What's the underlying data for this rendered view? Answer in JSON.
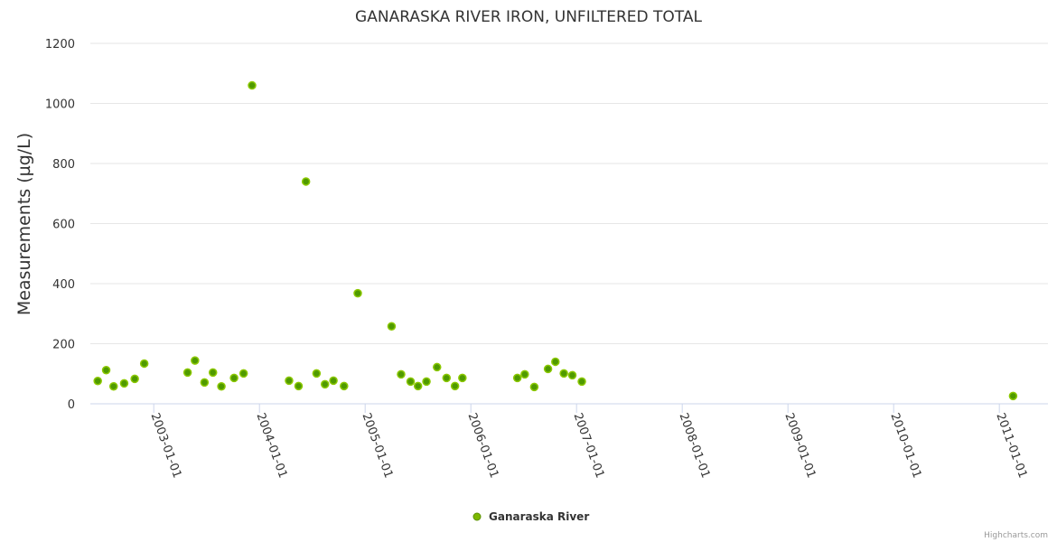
{
  "chart_data": {
    "type": "scatter",
    "title": "GANARASKA RIVER IRON, UNFILTERED TOTAL",
    "xlabel": "",
    "ylabel": "Measurements (µg/L)",
    "ylim": [
      0,
      1200
    ],
    "xlim": [
      2002.4,
      2011.46
    ],
    "y_ticks": [
      0,
      200,
      400,
      600,
      800,
      1000,
      1200
    ],
    "x_ticks": [
      {
        "value": 2003,
        "label": "2003-01-01"
      },
      {
        "value": 2004,
        "label": "2004-01-01"
      },
      {
        "value": 2005,
        "label": "2005-01-01"
      },
      {
        "value": 2006,
        "label": "2006-01-01"
      },
      {
        "value": 2007,
        "label": "2007-01-01"
      },
      {
        "value": 2008,
        "label": "2008-01-01"
      },
      {
        "value": 2009,
        "label": "2009-01-01"
      },
      {
        "value": 2010,
        "label": "2010-01-01"
      },
      {
        "value": 2011,
        "label": "2011-01-01"
      }
    ],
    "grid": true,
    "legend_position": "bottom-center",
    "series": [
      {
        "name": "Ganaraska River",
        "color": "#7cb800",
        "x": [
          2002.47,
          2002.55,
          2002.62,
          2002.72,
          2002.82,
          2002.91,
          2003.32,
          2003.39,
          2003.48,
          2003.56,
          2003.64,
          2003.76,
          2003.85,
          2003.93,
          2004.28,
          2004.37,
          2004.44,
          2004.54,
          2004.62,
          2004.7,
          2004.8,
          2004.93,
          2005.25,
          2005.34,
          2005.43,
          2005.5,
          2005.58,
          2005.68,
          2005.77,
          2005.85,
          2005.92,
          2006.44,
          2006.51,
          2006.6,
          2006.73,
          2006.8,
          2006.88,
          2006.96,
          2007.05,
          2011.13
        ],
        "y": [
          76,
          112,
          58,
          68,
          83,
          134,
          104,
          144,
          71,
          104,
          58,
          86,
          101,
          1060,
          77,
          59,
          740,
          101,
          65,
          77,
          59,
          368,
          258,
          98,
          74,
          59,
          74,
          122,
          86,
          59,
          86,
          86,
          98,
          56,
          116,
          140,
          101,
          95,
          74,
          26
        ]
      }
    ],
    "credits": "Highcharts.com"
  }
}
